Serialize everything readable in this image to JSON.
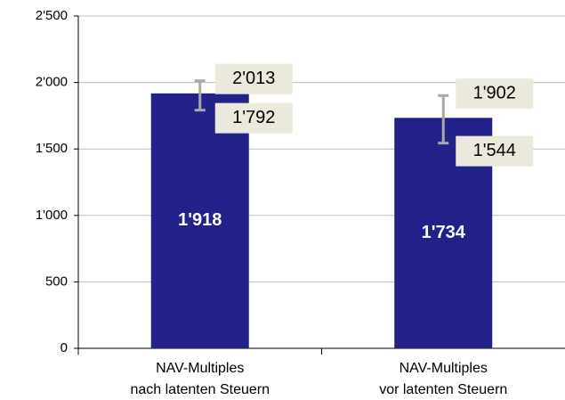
{
  "chart_data": {
    "type": "bar",
    "categories": [
      [
        "NAV-Multiples",
        "nach latenten Steuern"
      ],
      [
        "NAV-Multiples",
        "vor latenten Steuern"
      ]
    ],
    "values": [
      1918,
      1734
    ],
    "value_labels": [
      "1'918",
      "1'734"
    ],
    "high": [
      2013,
      1902
    ],
    "high_labels": [
      "2'013",
      "1'902"
    ],
    "low": [
      1792,
      1544
    ],
    "low_labels": [
      "1'792",
      "1'544"
    ],
    "color": "#22228a",
    "error_color": "#a8a8a8",
    "label_box_color": "#ebe8dc",
    "ylim": [
      0,
      2500
    ],
    "yticks": [
      0,
      500,
      {
        "value": 1000,
        "label": "1'000"
      },
      {
        "value": 1500,
        "label": "1'500"
      },
      {
        "value": 2000,
        "label": "2'000"
      },
      {
        "value": 2500,
        "label": "2'500"
      }
    ],
    "grid": true
  }
}
